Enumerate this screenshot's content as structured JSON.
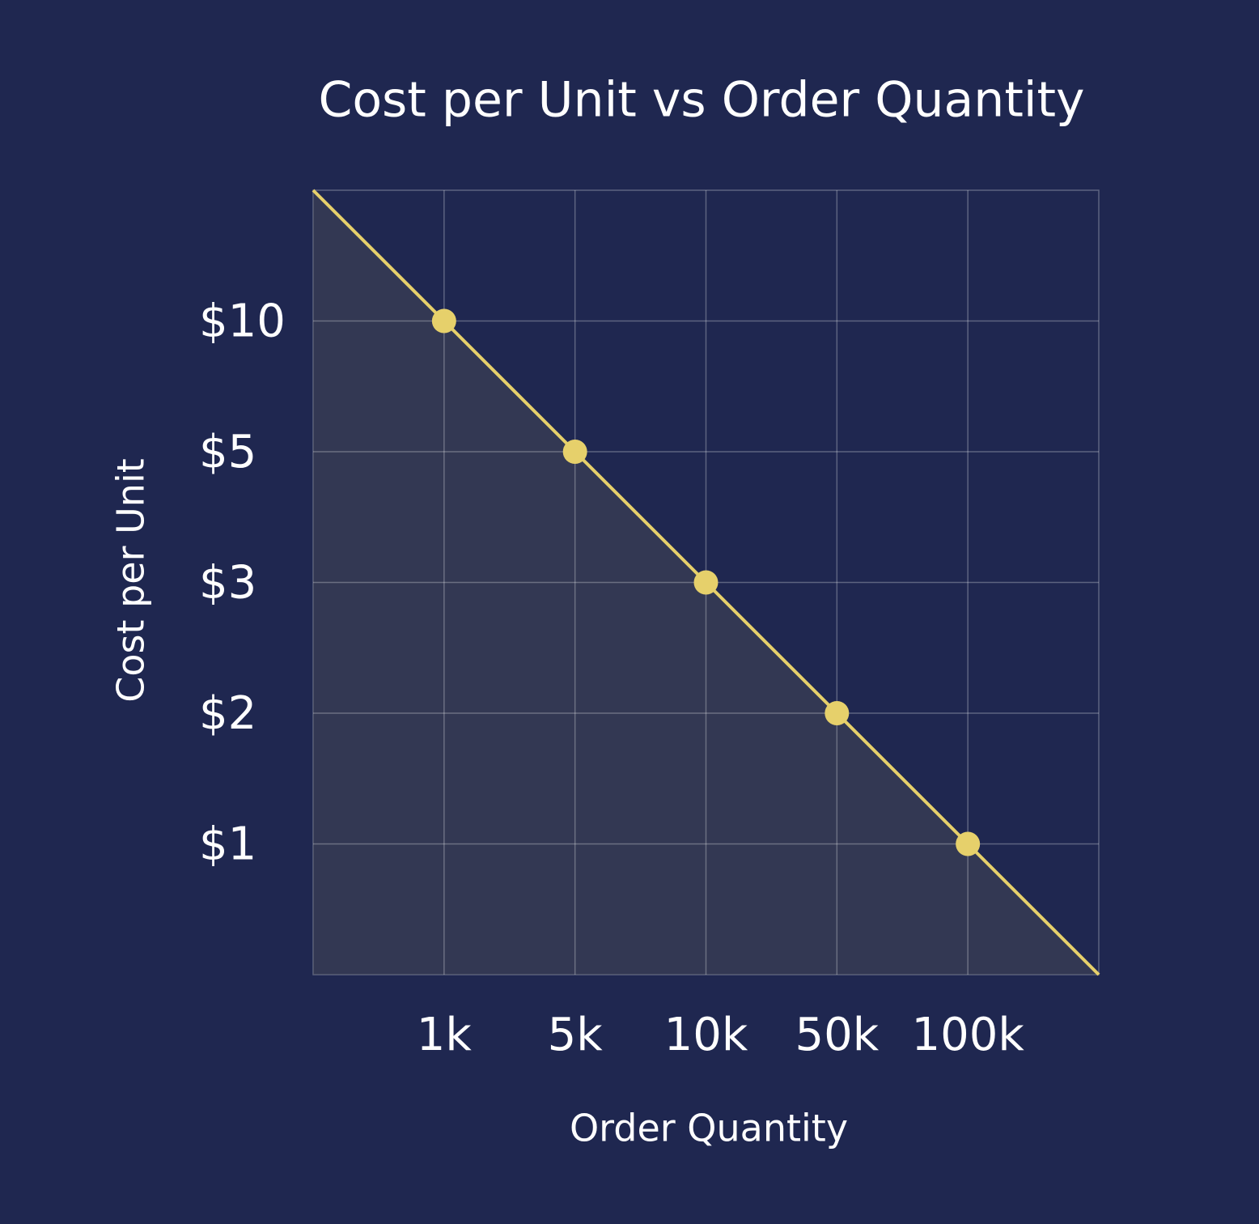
{
  "chart_data": {
    "type": "line",
    "title": "Cost per Unit vs Order Quantity",
    "x_label": "Order Quantity",
    "y_label": "Cost per Unit",
    "categories": [
      "1k",
      "5k",
      "10k",
      "50k",
      "100k"
    ],
    "series": [
      {
        "name": "Cost per Unit",
        "color": "#e6d06b",
        "values": [
          10,
          5,
          3,
          2,
          1
        ]
      }
    ],
    "yticks": [
      {
        "value": 1,
        "label": "$1"
      },
      {
        "value": 2,
        "label": "$2"
      },
      {
        "value": 3,
        "label": "$3"
      },
      {
        "value": 5,
        "label": "$5"
      },
      {
        "value": 10,
        "label": "$10"
      }
    ],
    "grid": true
  }
}
